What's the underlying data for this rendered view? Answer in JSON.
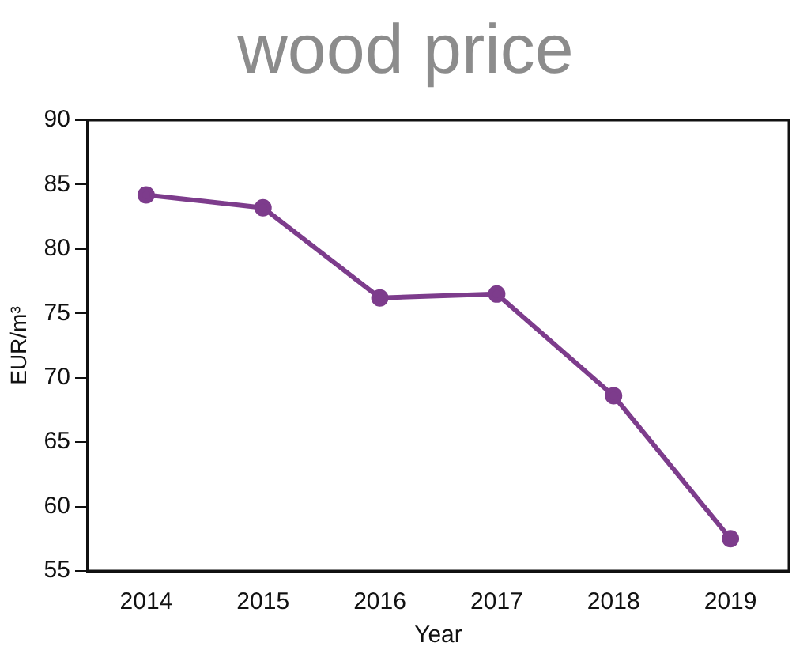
{
  "chart_data": {
    "type": "line",
    "title": "wood price",
    "xlabel": "Year",
    "ylabel": "EUR/m³",
    "categories": [
      "2014",
      "2015",
      "2016",
      "2017",
      "2018",
      "2019"
    ],
    "series": [
      {
        "color": "#7d3c8c",
        "values": [
          84.2,
          83.2,
          76.2,
          76.5,
          68.6,
          57.5
        ]
      }
    ],
    "ylim": [
      55,
      90
    ],
    "yticks": [
      55,
      60,
      65,
      70,
      75,
      80,
      85,
      90
    ],
    "grid": false,
    "legend": false,
    "marker": "circle",
    "line_style": "solid"
  }
}
